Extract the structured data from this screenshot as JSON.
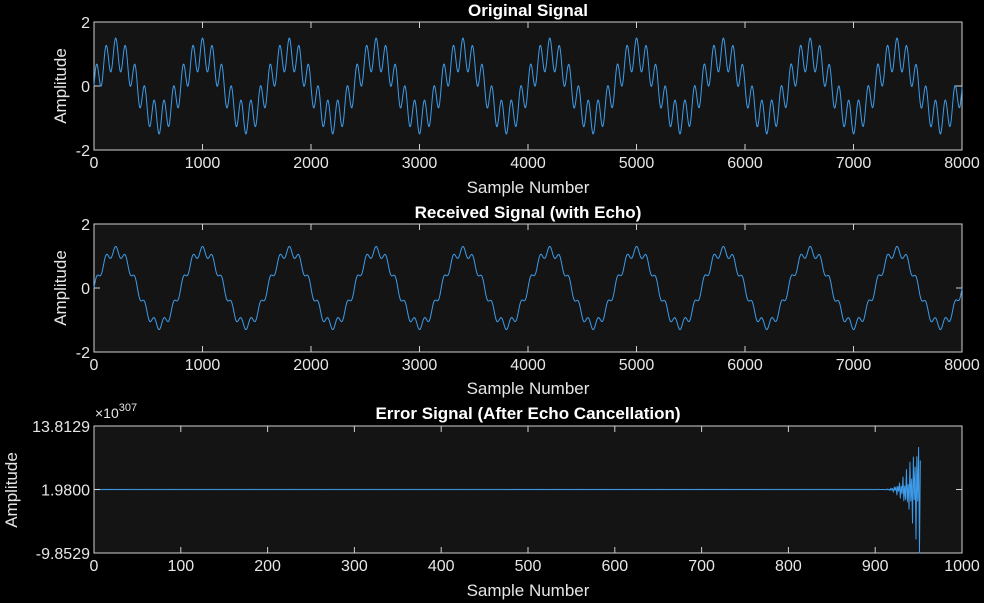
{
  "chart_data": [
    {
      "type": "line",
      "title": "Original Signal",
      "xlabel": "Sample Number",
      "ylabel": "Amplitude",
      "xlim": [
        0,
        8000
      ],
      "ylim": [
        -2,
        2
      ],
      "x_ticks": [
        0,
        1000,
        2000,
        3000,
        4000,
        5000,
        6000,
        7000,
        8000
      ],
      "y_ticks": [
        -2,
        0,
        2
      ],
      "x_tick_labels": [
        "0",
        "1000",
        "2000",
        "3000",
        "4000",
        "5000",
        "6000",
        "7000",
        "8000"
      ],
      "y_tick_labels": [
        "-2",
        "0",
        "2"
      ],
      "series": [
        {
          "color": "#3d9be9",
          "components": [
            {
              "amplitude": 1.0,
              "period_samples": 800
            },
            {
              "amplitude": 0.5,
              "period_samples": 88.9
            }
          ]
        }
      ],
      "grid": false
    },
    {
      "type": "line",
      "title": "Received Signal (with Echo)",
      "xlabel": "Sample Number",
      "ylabel": "Amplitude",
      "xlim": [
        0,
        8000
      ],
      "ylim": [
        -2,
        2
      ],
      "x_ticks": [
        0,
        1000,
        2000,
        3000,
        4000,
        5000,
        6000,
        7000,
        8000
      ],
      "y_ticks": [
        -2,
        0,
        2
      ],
      "x_tick_labels": [
        "0",
        "1000",
        "2000",
        "3000",
        "4000",
        "5000",
        "6000",
        "7000",
        "8000"
      ],
      "y_tick_labels": [
        "-2",
        "0",
        "2"
      ],
      "series": [
        {
          "color": "#3d9be9",
          "components": [
            {
              "amplitude": 1.15,
              "period_samples": 800
            },
            {
              "amplitude": 0.15,
              "period_samples": 88.9
            }
          ]
        }
      ],
      "grid": false
    },
    {
      "type": "line",
      "title": "Error Signal (After Echo Cancellation)",
      "xlabel": "Sample Number",
      "ylabel": "Amplitude",
      "xlim": [
        0,
        1000
      ],
      "ylim": [
        -9.8529,
        13.8129
      ],
      "y_exponent_label": "×10",
      "y_exponent_power": "307",
      "x_ticks": [
        0,
        100,
        200,
        300,
        400,
        500,
        600,
        700,
        800,
        900,
        1000
      ],
      "y_ticks": [
        -9.8529,
        1.98,
        13.8129
      ],
      "x_tick_labels": [
        "0",
        "100",
        "200",
        "300",
        "400",
        "500",
        "600",
        "700",
        "800",
        "900",
        "1000"
      ],
      "y_tick_labels": [
        "-9.8529",
        "1.9800",
        "13.8129"
      ],
      "series": [
        {
          "color": "#3d9be9",
          "baseline": 1.98,
          "end_sample": 952,
          "divergence_start_sample": 905
        }
      ],
      "grid": false
    }
  ]
}
